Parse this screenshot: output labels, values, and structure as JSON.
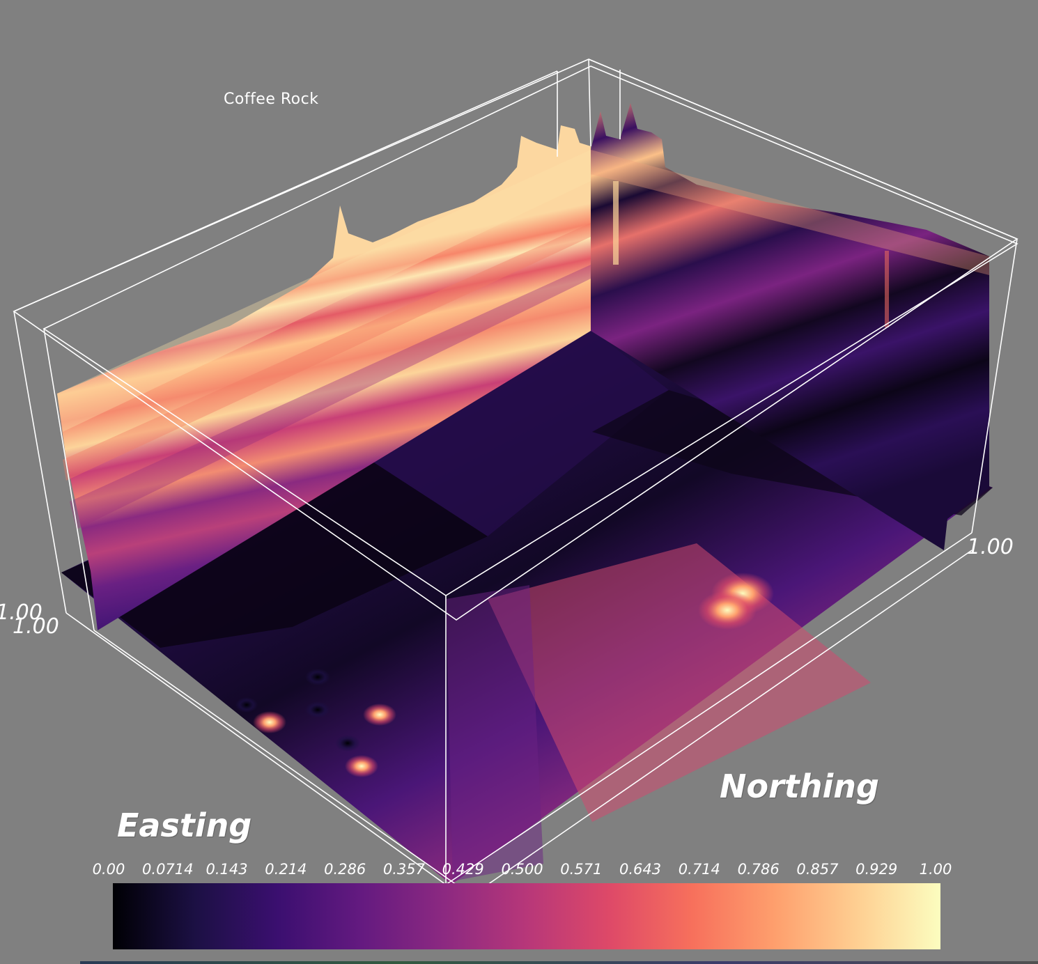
{
  "view": {
    "title": "Coffee Rock",
    "axes": {
      "easting_label": "Easting",
      "northing_label": "Northing",
      "tick_left_upper": "1.00",
      "tick_left_lower": "1.00",
      "tick_right": "1.00"
    }
  },
  "colorbar": {
    "colormap": "magma",
    "stops": [
      "#000004",
      "#1c1044",
      "#3b0f70",
      "#641a80",
      "#8c2981",
      "#b73779",
      "#de4968",
      "#f7705c",
      "#fe9f6d",
      "#fecf92",
      "#fcfdbf"
    ],
    "labels": [
      "0.00",
      "0.0714",
      "0.143",
      "0.214",
      "0.286",
      "0.357",
      "0.429",
      "0.500",
      "0.571",
      "0.643",
      "0.714",
      "0.786",
      "0.857",
      "0.929",
      "1.00"
    ],
    "min": 0.0,
    "max": 1.0
  }
}
